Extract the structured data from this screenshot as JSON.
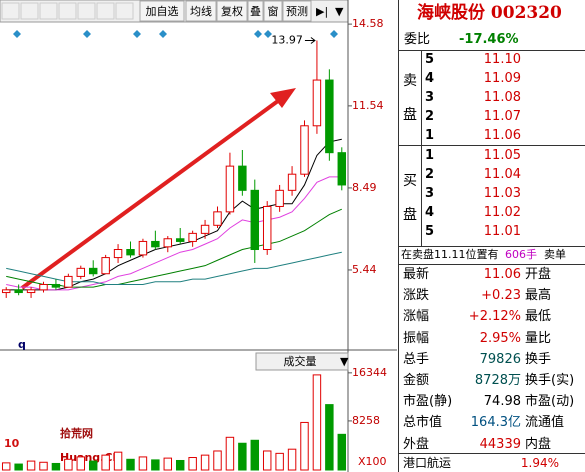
{
  "toolbar": {
    "items": [
      "加自选",
      "均线",
      "复权",
      "叠",
      "窗",
      "预测"
    ]
  },
  "chart_data": [
    {
      "type": "candlestick",
      "annotation": "13.97",
      "corner_label": "q",
      "open": [
        4.6,
        4.7,
        4.6,
        4.7,
        4.9,
        4.8,
        5.2,
        5.5,
        5.3,
        5.9,
        6.2,
        6.0,
        6.5,
        6.3,
        6.6,
        6.5,
        6.8,
        7.1,
        7.6,
        9.3,
        8.4,
        6.2,
        7.8,
        8.4,
        9.0,
        10.8,
        12.5,
        9.8
      ],
      "high": [
        4.8,
        4.9,
        4.8,
        5.0,
        5.1,
        5.3,
        5.6,
        5.8,
        6.0,
        6.4,
        6.5,
        6.6,
        6.9,
        6.7,
        7.0,
        6.9,
        7.3,
        7.8,
        9.8,
        9.9,
        8.8,
        8.0,
        8.6,
        9.3,
        11.0,
        13.97,
        12.9,
        10.0
      ],
      "low": [
        4.4,
        4.5,
        4.4,
        4.6,
        4.7,
        4.8,
        5.1,
        5.2,
        5.3,
        5.7,
        5.9,
        5.9,
        6.2,
        6.1,
        6.4,
        6.3,
        6.6,
        7.0,
        7.5,
        8.2,
        5.7,
        6.0,
        7.6,
        8.2,
        8.9,
        10.5,
        9.5,
        8.4
      ],
      "close": [
        4.7,
        4.6,
        4.7,
        4.9,
        4.8,
        5.2,
        5.5,
        5.3,
        5.9,
        6.2,
        6.0,
        6.5,
        6.3,
        6.6,
        6.5,
        6.8,
        7.1,
        7.6,
        9.3,
        8.4,
        6.2,
        7.8,
        8.4,
        9.0,
        10.8,
        12.5,
        9.8,
        8.6
      ],
      "up_color": "#e00000",
      "down_color": "#009a00",
      "lines": [
        {
          "color": "#000000",
          "values": [
            4.7,
            4.7,
            4.7,
            4.7,
            4.7,
            4.8,
            5.0,
            5.1,
            5.3,
            5.6,
            5.8,
            6.0,
            6.2,
            6.3,
            6.4,
            6.5,
            6.7,
            6.9,
            7.6,
            8.0,
            7.7,
            7.8,
            7.9,
            7.9,
            8.6,
            9.7,
            10.2,
            10.3
          ]
        },
        {
          "color": "#e040e0",
          "values": [
            4.9,
            4.8,
            4.8,
            4.7,
            4.7,
            4.7,
            4.8,
            4.9,
            5.0,
            5.2,
            5.3,
            5.5,
            5.7,
            5.9,
            6.1,
            6.2,
            6.4,
            6.6,
            7.0,
            7.3,
            7.2,
            7.3,
            7.4,
            7.6,
            8.1,
            8.7,
            8.9,
            8.9
          ]
        },
        {
          "color": "#008000",
          "values": [
            5.2,
            5.1,
            5.0,
            4.9,
            4.9,
            4.8,
            4.8,
            4.8,
            4.9,
            4.9,
            5.0,
            5.1,
            5.2,
            5.3,
            5.4,
            5.5,
            5.6,
            5.8,
            6.0,
            6.2,
            6.3,
            6.4,
            6.5,
            6.7,
            6.9,
            7.2,
            7.5,
            7.7
          ]
        },
        {
          "color": "#208080",
          "values": [
            5.5,
            5.4,
            5.3,
            5.2,
            5.1,
            5.0,
            5.0,
            5.0,
            4.9,
            4.9,
            4.9,
            4.9,
            5.0,
            5.0,
            5.0,
            5.1,
            5.1,
            5.2,
            5.3,
            5.4,
            5.5,
            5.5,
            5.6,
            5.7,
            5.8,
            5.9,
            6.0,
            6.1
          ]
        }
      ],
      "ylim": [
        2.65,
        15.03
      ],
      "yticks": [
        5.44,
        8.49,
        11.54,
        14.58
      ]
    },
    {
      "type": "bar",
      "title": "成交量",
      "unit": "X100",
      "values": [
        1200,
        1000,
        1500,
        1300,
        1100,
        1800,
        2200,
        1500,
        2500,
        3000,
        1800,
        2200,
        1700,
        2000,
        1600,
        2100,
        2500,
        3200,
        5500,
        4500,
        5000,
        3200,
        2800,
        3500,
        8000,
        16000,
        11000,
        6000
      ],
      "ylim": [
        0,
        17664
      ],
      "yticks": [
        8258,
        16344
      ]
    }
  ],
  "quote": {
    "title": "海峡股份 002320",
    "weibi_label": "委比",
    "weibi": "-17.46%",
    "sell_label": [
      "卖",
      "盘"
    ],
    "buy_label": [
      "买",
      "盘"
    ],
    "sell": [
      [
        "5",
        "11.10"
      ],
      [
        "4",
        "11.09"
      ],
      [
        "3",
        "11.08"
      ],
      [
        "2",
        "11.07"
      ],
      [
        "1",
        "11.06"
      ]
    ],
    "buy": [
      [
        "1",
        "11.05"
      ],
      [
        "2",
        "11.04"
      ],
      [
        "3",
        "11.03"
      ],
      [
        "4",
        "11.02"
      ],
      [
        "5",
        "11.01"
      ]
    ],
    "notice": [
      "在卖盘11.11位置有",
      "606手",
      "卖单"
    ],
    "stats": [
      [
        "最新",
        "11.06",
        "开盘"
      ],
      [
        "涨跌",
        "+0.23",
        "最高"
      ],
      [
        "涨幅",
        "+2.12%",
        "最低"
      ],
      [
        "振幅",
        "2.95%",
        "量比"
      ],
      [
        "总手",
        "79826",
        "换手"
      ],
      [
        "金额",
        "8728万",
        "换手(实)"
      ],
      [
        "市盈(静)",
        "74.98",
        "市盈(动)"
      ],
      [
        "总市值",
        "164.3亿",
        "流通值"
      ],
      [
        "外盘",
        "44339",
        "内盘"
      ]
    ],
    "footer": [
      "港口航运",
      "1.94%"
    ]
  },
  "watermark": [
    "10",
    "拾荒网",
    "Huang.CN"
  ]
}
